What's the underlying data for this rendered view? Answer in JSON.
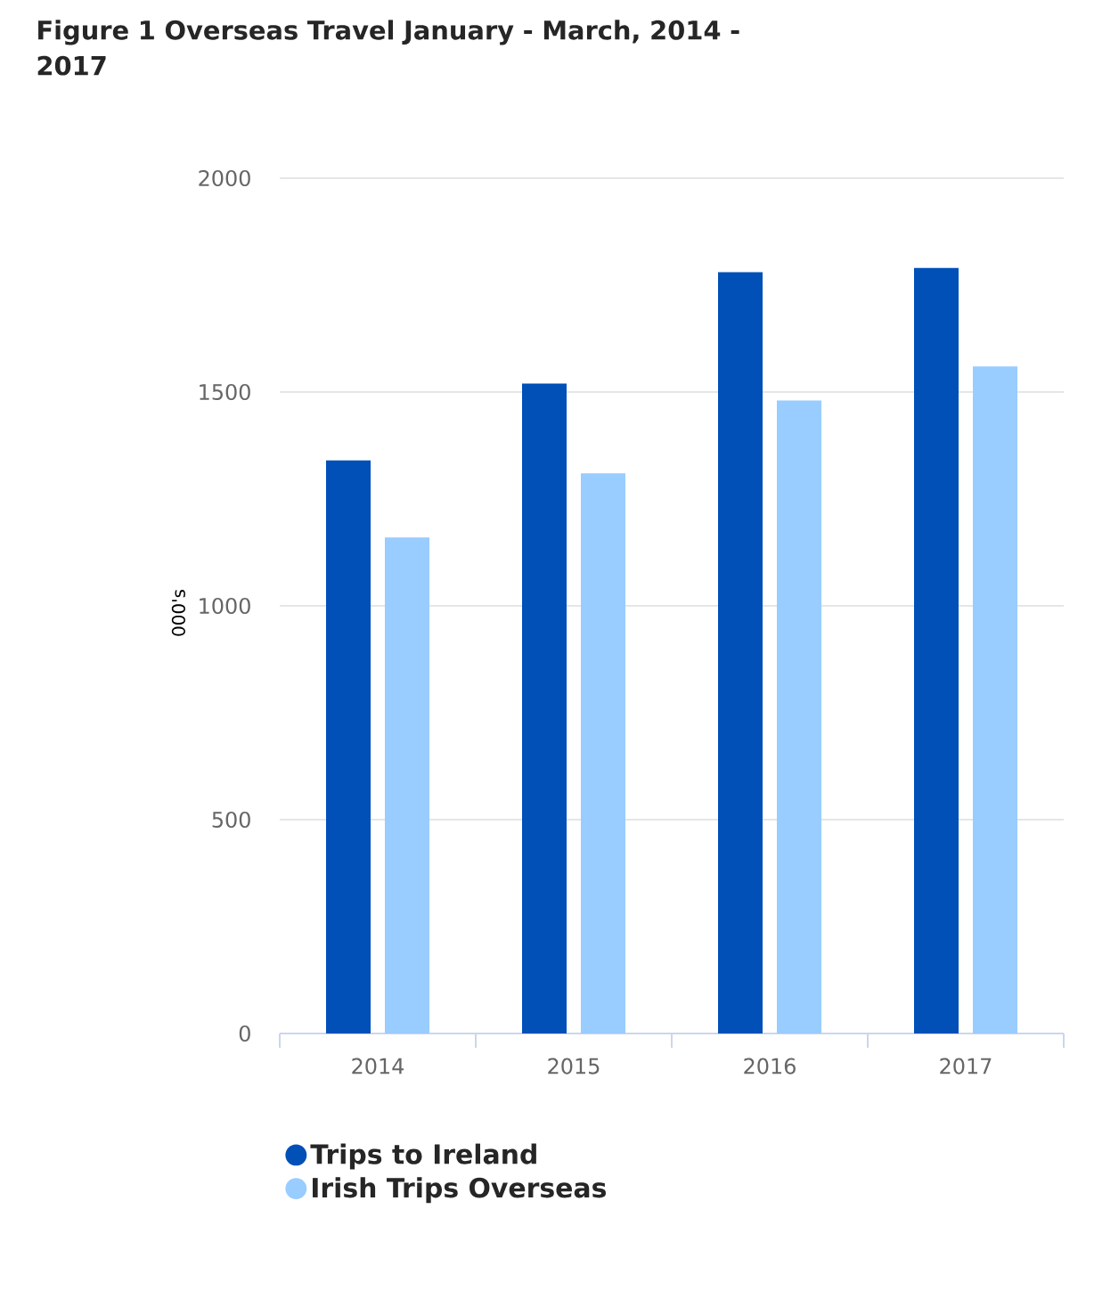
{
  "chart_data": {
    "type": "bar",
    "title": "Figure 1 Overseas Travel January - March, 2014 - 2017",
    "ylabel": "000's",
    "categories": [
      "2014",
      "2015",
      "2016",
      "2017"
    ],
    "series": [
      {
        "name": "Trips to Ireland",
        "color": "#0050b8",
        "values": [
          1340,
          1520,
          1780,
          1790
        ]
      },
      {
        "name": "Irish Trips Overseas",
        "color": "#99ccff",
        "values": [
          1160,
          1310,
          1480,
          1560
        ]
      }
    ],
    "ylim": [
      0,
      2000
    ],
    "yticks": [
      0,
      500,
      1000,
      1500,
      2000
    ],
    "grid": "y",
    "legend": "bottom"
  }
}
